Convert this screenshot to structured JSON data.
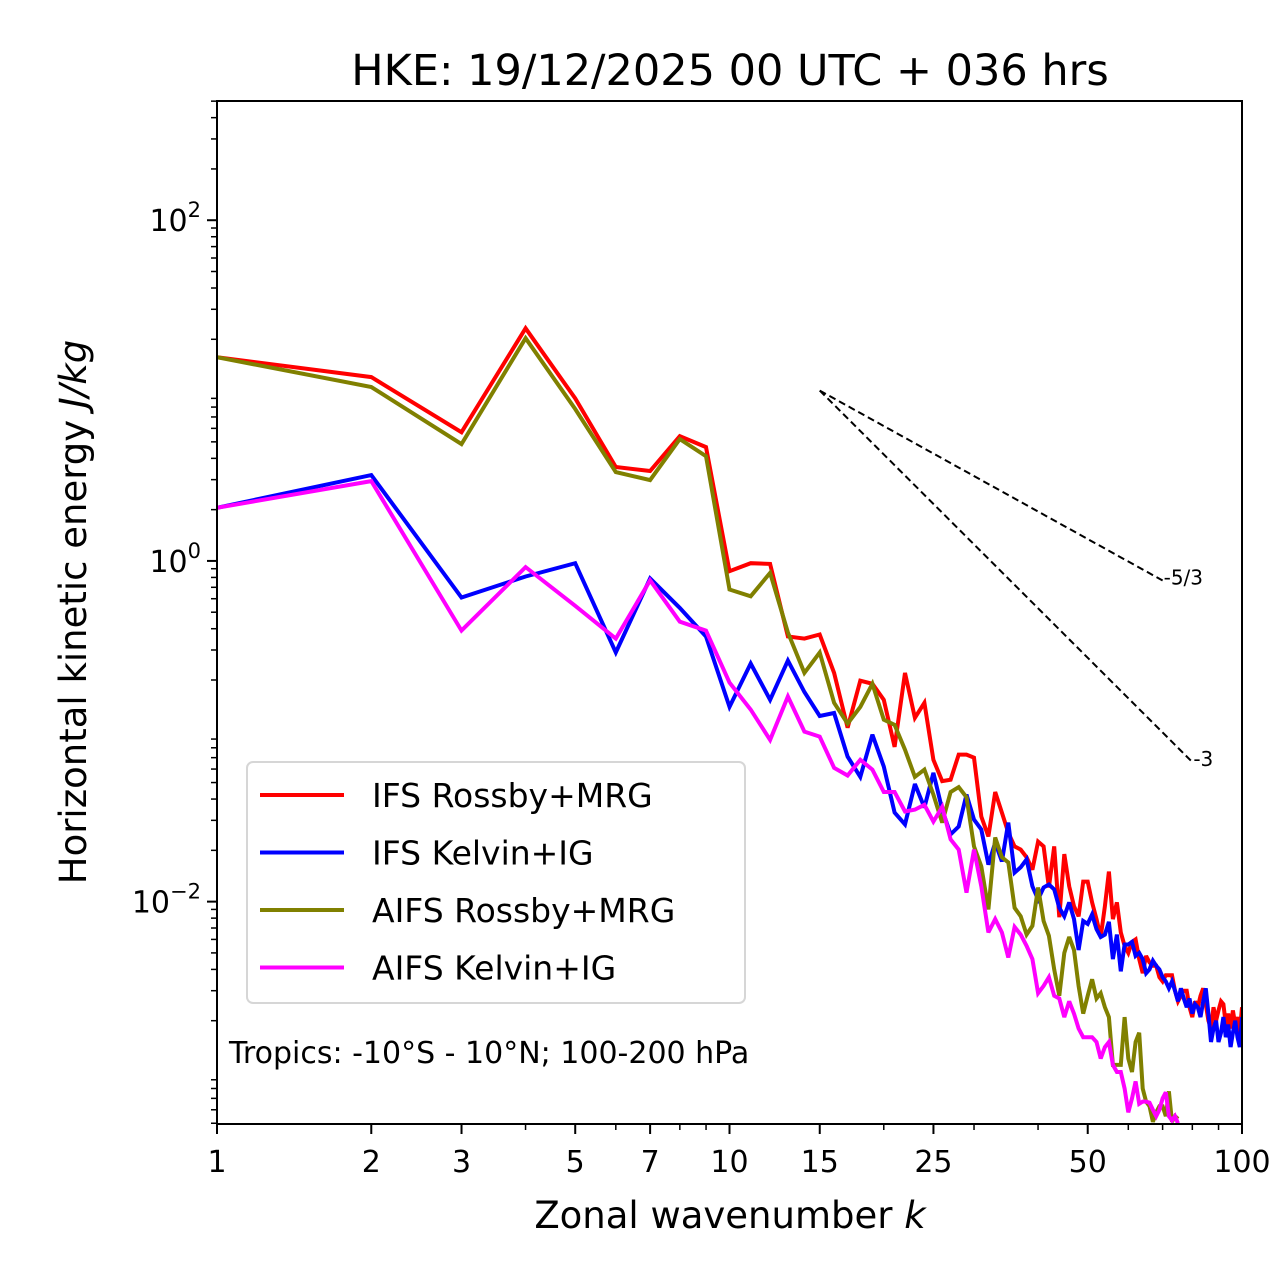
{
  "chart_data": {
    "type": "line",
    "title": "HKE: 19/12/2025 00 UTC + 036 hrs",
    "xlabel": "Zonal wavenumber",
    "xlabel_italic": "k",
    "ylabel": "Horizontal kinetic energy",
    "ylabel_italic": "J/kg",
    "xscale": "log",
    "yscale": "log",
    "xlim": [
      1,
      100
    ],
    "ylim": [
      0.000495,
      501
    ],
    "grid": false,
    "x_ticks": [
      {
        "value": 1,
        "label": "1"
      },
      {
        "value": 2,
        "label": "2"
      },
      {
        "value": 3,
        "label": "3"
      },
      {
        "value": 5,
        "label": "5"
      },
      {
        "value": 7,
        "label": "7"
      },
      {
        "value": 10,
        "label": "10"
      },
      {
        "value": 15,
        "label": "15"
      },
      {
        "value": 25,
        "label": "25"
      },
      {
        "value": 50,
        "label": "50"
      },
      {
        "value": 100,
        "label": "100"
      }
    ],
    "x_minor_ticks": [
      4,
      6,
      8,
      9,
      20,
      30,
      40,
      60,
      70,
      80,
      90
    ],
    "y_ticks": [
      {
        "value": 100,
        "base": "10",
        "exp": "2"
      },
      {
        "value": 1,
        "base": "10",
        "exp": "0"
      },
      {
        "value": 0.01,
        "base": "10",
        "exp": "−2"
      }
    ],
    "annotation": "Tropics: -10°S - 10°N; 100-200 hPa",
    "legend_position": "lower-left",
    "reference_lines": [
      {
        "label": "-5/3",
        "slope": -1.6667,
        "k_start": 15,
        "k_end": 70,
        "y_start": 10
      },
      {
        "label": "-3",
        "slope": -3,
        "k_start": 15,
        "k_end": 80,
        "y_start": 10
      }
    ],
    "series": [
      {
        "name": "IFS Rossby+MRG",
        "color": "#ff0000",
        "k_start": 1,
        "values": [
          15.7,
          12.0,
          5.7,
          23.2,
          9.0,
          3.56,
          3.37,
          5.4,
          4.66,
          0.87,
          0.97,
          0.96,
          0.36,
          0.35,
          0.37,
          0.22,
          0.105,
          0.198,
          0.19,
          0.153,
          0.081,
          0.22,
          0.12,
          0.147,
          0.068,
          0.051,
          0.052,
          0.073,
          0.073,
          0.07,
          0.0316,
          0.0241,
          0.044,
          0.0333,
          0.0254,
          0.0211,
          0.0202,
          0.0182,
          0.0154,
          0.0225,
          0.0211,
          0.0121,
          0.0211,
          0.0081,
          0.019,
          0.0123,
          0.0094,
          0.0082,
          0.0131,
          0.0131,
          0.0099,
          0.0079,
          0.0062,
          0.0094,
          0.015,
          0.0079,
          0.0099,
          0.0066,
          0.0055,
          0.005,
          0.0058,
          0.006,
          0.0046,
          0.0038,
          0.0048,
          0.0044,
          0.0042,
          0.0042,
          0.0036,
          0.0034,
          0.0037,
          0.0037,
          0.0037,
          0.003,
          0.0026,
          0.0028,
          0.003,
          0.003,
          0.0024,
          0.0021,
          0.0026,
          0.0024,
          0.0028,
          0.0031,
          0.0025,
          0.002,
          0.0018,
          0.0024,
          0.002,
          0.0023,
          0.0026,
          0.0025,
          0.0019,
          0.0022,
          0.0018,
          0.0023,
          0.0019,
          0.0021,
          0.0017,
          0.0024
        ]
      },
      {
        "name": "IFS Kelvin+IG",
        "color": "#0000ff",
        "k_start": 1,
        "values": [
          2.05,
          3.19,
          0.61,
          0.81,
          0.97,
          0.29,
          0.79,
          0.53,
          0.36,
          0.139,
          0.25,
          0.153,
          0.26,
          0.17,
          0.123,
          0.128,
          0.071,
          0.054,
          0.0955,
          0.062,
          0.0333,
          0.0284,
          0.049,
          0.0357,
          0.057,
          0.0347,
          0.0248,
          0.0276,
          0.0425,
          0.0303,
          0.0265,
          0.0165,
          0.0222,
          0.0172,
          0.0291,
          0.0148,
          0.0159,
          0.0177,
          0.0123,
          0.0103,
          0.0121,
          0.0126,
          0.0118,
          0.0092,
          0.0082,
          0.0099,
          0.0079,
          0.0052,
          0.0077,
          0.0074,
          0.0084,
          0.0069,
          0.0062,
          0.0064,
          0.0076,
          0.0046,
          0.0064,
          0.0039,
          0.0056,
          0.0056,
          0.0058,
          0.0048,
          0.005,
          0.0046,
          0.0038,
          0.004,
          0.0045,
          0.0042,
          0.004,
          0.0036,
          0.0034,
          0.0031,
          0.0034,
          0.003,
          0.0026,
          0.0031,
          0.0027,
          0.0024,
          0.0027,
          0.0022,
          0.0025,
          0.0024,
          0.0021,
          0.0026,
          0.0031,
          0.0022,
          0.0015,
          0.0018,
          0.002,
          0.0015,
          0.0017,
          0.0021,
          0.0016,
          0.0019,
          0.0014,
          0.0017,
          0.002,
          0.0016,
          0.0014,
          0.0021
        ]
      },
      {
        "name": "AIFS Rossby+MRG",
        "color": "#808000",
        "k_start": 1,
        "values": [
          15.7,
          10.5,
          4.85,
          20.3,
          7.8,
          3.32,
          2.98,
          5.19,
          4.12,
          0.68,
          0.62,
          0.85,
          0.38,
          0.22,
          0.29,
          0.147,
          0.111,
          0.139,
          0.19,
          0.117,
          0.109,
          0.078,
          0.054,
          0.0596,
          0.0425,
          0.0291,
          0.044,
          0.047,
          0.041,
          0.0211,
          0.0161,
          0.009,
          0.0238,
          0.0182,
          0.017,
          0.0092,
          0.0082,
          0.0064,
          0.0072,
          0.0121,
          0.0077,
          0.0063,
          0.004,
          0.0028,
          0.005,
          0.0062,
          0.0052,
          0.0032,
          0.0022,
          0.0028,
          0.0035,
          0.0027,
          0.0029,
          0.0024,
          0.0021,
          0.0011,
          0.0011,
          0.0011,
          0.0021,
          0.0012,
          0.001,
          0.0015,
          0.0017,
          0.0008,
          0.00067,
          0.00063,
          0.00051,
          0.00058,
          0.00063,
          0.00063,
          0.00055,
          0.00077,
          0.00051,
          0.00055,
          0.00053
        ]
      },
      {
        "name": "AIFS Kelvin+IG",
        "color": "#ff00ff",
        "k_start": 1,
        "values": [
          2.05,
          2.94,
          0.39,
          0.92,
          0.545,
          0.35,
          0.77,
          0.44,
          0.39,
          0.193,
          0.134,
          0.089,
          0.16,
          0.0995,
          0.093,
          0.061,
          0.055,
          0.068,
          0.0596,
          0.044,
          0.044,
          0.0338,
          0.0347,
          0.037,
          0.0295,
          0.036,
          0.0232,
          0.0202,
          0.0113,
          0.0202,
          0.0123,
          0.0066,
          0.0079,
          0.0066,
          0.0047,
          0.0071,
          0.0064,
          0.0055,
          0.0046,
          0.0029,
          0.0032,
          0.0036,
          0.0028,
          0.0027,
          0.0021,
          0.0026,
          0.0022,
          0.0018,
          0.0016,
          0.0016,
          0.0016,
          0.0015,
          0.0012,
          0.0014,
          0.0015,
          0.0011,
          0.001,
          0.001,
          0.0008,
          0.00058,
          0.0007,
          0.00088,
          0.00065,
          0.00067,
          0.00067,
          0.00066,
          0.0006,
          0.00055,
          0.0006,
          0.0007,
          0.00076,
          0.00055,
          0.00052,
          0.00055,
          0.0005
        ]
      }
    ]
  }
}
